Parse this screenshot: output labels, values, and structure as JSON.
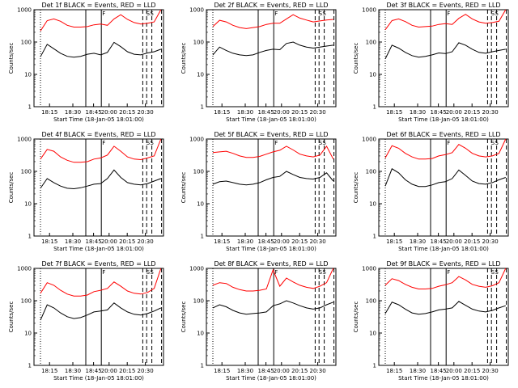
{
  "chart_data": [
    {
      "type": "line",
      "title": "Det 1f BLACK = Events, RED = LLD",
      "xlabel": "Start Time (18-Jan-05 18:01:00)",
      "ylabel": "Counts/sec",
      "x_ticks": [
        "18:15",
        "18:30",
        "18:45",
        "20:00",
        "20:15",
        "20:30"
      ],
      "y_ticks": [
        "1",
        "10",
        "100",
        "1000"
      ],
      "ylim": [
        1,
        1000
      ],
      "yscale": "log",
      "series": [
        {
          "color": "#000000",
          "values": [
            35,
            85,
            62,
            45,
            36,
            34,
            36,
            42,
            45,
            40,
            48,
            98,
            72,
            50,
            42,
            40,
            46,
            50,
            60
          ]
        },
        {
          "color": "#ff0000",
          "values": [
            220,
            460,
            520,
            440,
            330,
            290,
            290,
            300,
            340,
            360,
            330,
            520,
            700,
            500,
            400,
            360,
            380,
            420,
            1000
          ]
        }
      ],
      "markers": [
        "F",
        "S",
        "S"
      ]
    },
    {
      "type": "line",
      "title": "Det 2f BLACK = Events, RED = LLD",
      "xlabel": "Start Time (18-Jan-05 18:01:00)",
      "ylabel": "Counts/sec",
      "x_ticks": [
        "18:15",
        "18:30",
        "18:45",
        "20:00",
        "20:15",
        "20:30"
      ],
      "y_ticks": [
        "1",
        "10",
        "100",
        "1000"
      ],
      "ylim": [
        1,
        1000
      ],
      "yscale": "log",
      "series": [
        {
          "color": "#000000",
          "values": [
            40,
            70,
            55,
            45,
            40,
            38,
            40,
            48,
            55,
            60,
            58,
            90,
            100,
            80,
            70,
            65,
            70,
            75,
            80
          ]
        },
        {
          "color": "#ff0000",
          "values": [
            300,
            470,
            420,
            330,
            280,
            260,
            280,
            300,
            350,
            380,
            380,
            520,
            700,
            550,
            480,
            420,
            450,
            480,
            500
          ]
        }
      ],
      "markers": [
        "F",
        "S",
        "S"
      ]
    },
    {
      "type": "line",
      "title": "Det 3f BLACK = Events, RED = LLD",
      "xlabel": "Start Time (18-Jan-05 18:01:00)",
      "ylabel": "Counts/sec",
      "x_ticks": [
        "18:15",
        "18:30",
        "18:45",
        "20:00",
        "20:15",
        "20:30"
      ],
      "y_ticks": [
        "1",
        "10",
        "100",
        "1000"
      ],
      "ylim": [
        1,
        1000
      ],
      "yscale": "log",
      "series": [
        {
          "color": "#000000",
          "values": [
            30,
            80,
            65,
            48,
            38,
            34,
            36,
            40,
            46,
            44,
            50,
            95,
            80,
            60,
            48,
            45,
            50,
            55,
            60
          ]
        },
        {
          "color": "#ff0000",
          "values": [
            240,
            460,
            520,
            430,
            330,
            290,
            300,
            310,
            350,
            370,
            350,
            540,
            720,
            520,
            420,
            380,
            400,
            440,
            1000
          ]
        }
      ],
      "markers": [
        "F",
        "S",
        "S"
      ]
    },
    {
      "type": "line",
      "title": "Det 4f BLACK = Events, RED = LLD",
      "xlabel": "Start Time (18-Jan-05 18:01:00)",
      "ylabel": "Counts/sec",
      "x_ticks": [
        "18:15",
        "18:30",
        "18:45",
        "20:00",
        "20:15",
        "20:30"
      ],
      "y_ticks": [
        "1",
        "10",
        "100",
        "1000"
      ],
      "ylim": [
        1,
        1000
      ],
      "yscale": "log",
      "series": [
        {
          "color": "#000000",
          "values": [
            30,
            60,
            45,
            35,
            30,
            29,
            31,
            35,
            40,
            42,
            60,
            110,
            65,
            45,
            40,
            38,
            42,
            50,
            60
          ]
        },
        {
          "color": "#ff0000",
          "values": [
            240,
            480,
            420,
            280,
            220,
            190,
            190,
            200,
            240,
            260,
            320,
            600,
            420,
            280,
            240,
            230,
            260,
            300,
            1000
          ]
        }
      ],
      "markers": [
        "F",
        "S",
        "S"
      ]
    },
    {
      "type": "line",
      "title": "Det 5f BLACK = Events, RED = LLD",
      "xlabel": "Start Time (18-Jan-05 18:01:00)",
      "ylabel": "Counts/sec",
      "x_ticks": [
        "18:15",
        "18:30",
        "18:45",
        "20:00",
        "20:15",
        "20:30"
      ],
      "y_ticks": [
        "1",
        "10",
        "100",
        "1000"
      ],
      "ylim": [
        1,
        1000
      ],
      "yscale": "log",
      "series": [
        {
          "color": "#000000",
          "values": [
            40,
            48,
            50,
            45,
            40,
            38,
            40,
            45,
            55,
            65,
            70,
            100,
            80,
            65,
            60,
            58,
            65,
            90,
            50
          ]
        },
        {
          "color": "#ff0000",
          "values": [
            380,
            400,
            420,
            360,
            300,
            270,
            270,
            290,
            340,
            400,
            450,
            600,
            460,
            340,
            300,
            280,
            320,
            600,
            240
          ]
        }
      ],
      "markers": [
        "F",
        "S",
        "S"
      ]
    },
    {
      "type": "line",
      "title": "Det 6f BLACK = Events, RED = LLD",
      "xlabel": "Start Time (18-Jan-05 18:01:00)",
      "ylabel": "Counts/sec",
      "x_ticks": [
        "18:15",
        "18:30",
        "18:45",
        "20:00",
        "20:15",
        "20:30"
      ],
      "y_ticks": [
        "1",
        "10",
        "100",
        "1000"
      ],
      "ylim": [
        1,
        1000
      ],
      "yscale": "log",
      "series": [
        {
          "color": "#000000",
          "values": [
            35,
            120,
            90,
            55,
            40,
            34,
            34,
            38,
            45,
            48,
            60,
            110,
            75,
            50,
            42,
            40,
            45,
            55,
            65
          ]
        },
        {
          "color": "#ff0000",
          "values": [
            260,
            620,
            520,
            360,
            280,
            240,
            240,
            250,
            300,
            330,
            380,
            680,
            520,
            360,
            300,
            280,
            300,
            360,
            1000
          ]
        }
      ],
      "markers": [
        "F",
        "S",
        "S"
      ]
    },
    {
      "type": "line",
      "title": "Det 7f BLACK = Events, RED = LLD",
      "xlabel": "Start Time (18-Jan-05 18:01:00)",
      "ylabel": "Counts/sec",
      "x_ticks": [
        "18:15",
        "18:30",
        "18:45",
        "20:00",
        "20:15",
        "20:30"
      ],
      "y_ticks": [
        "1",
        "10",
        "100",
        "1000"
      ],
      "ylim": [
        1,
        1000
      ],
      "yscale": "log",
      "series": [
        {
          "color": "#000000",
          "values": [
            25,
            75,
            60,
            42,
            32,
            28,
            30,
            36,
            45,
            48,
            52,
            85,
            60,
            45,
            38,
            36,
            40,
            48,
            60
          ]
        },
        {
          "color": "#ff0000",
          "values": [
            170,
            360,
            300,
            210,
            160,
            140,
            140,
            150,
            190,
            210,
            240,
            380,
            280,
            200,
            170,
            160,
            180,
            240,
            1000
          ]
        }
      ],
      "markers": [
        "F",
        "S",
        "S"
      ]
    },
    {
      "type": "line",
      "title": "Det 8f BLACK = Events, RED = LLD",
      "xlabel": "Start Time (18-Jan-05 18:01:00)",
      "ylabel": "Counts/sec",
      "x_ticks": [
        "18:15",
        "18:30",
        "18:45",
        "20:00",
        "20:15",
        "20:30"
      ],
      "y_ticks": [
        "1",
        "10",
        "100",
        "1000"
      ],
      "ylim": [
        1,
        1000
      ],
      "yscale": "log",
      "series": [
        {
          "color": "#000000",
          "values": [
            60,
            75,
            65,
            50,
            42,
            38,
            40,
            42,
            45,
            70,
            80,
            100,
            85,
            70,
            60,
            55,
            60,
            75,
            90
          ]
        },
        {
          "color": "#ff0000",
          "values": [
            300,
            360,
            340,
            260,
            220,
            200,
            200,
            210,
            230,
            900,
            280,
            500,
            380,
            300,
            260,
            240,
            280,
            360,
            1000
          ]
        }
      ],
      "markers": [
        "F",
        "S",
        "S"
      ]
    },
    {
      "type": "line",
      "title": "Det 9f BLACK = Events, RED = LLD",
      "xlabel": "Start Time (18-Jan-05 18:01:00)",
      "ylabel": "Counts/sec",
      "x_ticks": [
        "18:15",
        "18:30",
        "18:45",
        "20:00",
        "20:15",
        "20:30"
      ],
      "y_ticks": [
        "1",
        "10",
        "100",
        "1000"
      ],
      "ylim": [
        1,
        1000
      ],
      "yscale": "log",
      "series": [
        {
          "color": "#000000",
          "values": [
            40,
            90,
            75,
            55,
            42,
            38,
            40,
            45,
            52,
            55,
            60,
            95,
            72,
            55,
            48,
            45,
            50,
            60,
            70
          ]
        },
        {
          "color": "#ff0000",
          "values": [
            300,
            480,
            420,
            320,
            260,
            230,
            230,
            240,
            280,
            310,
            360,
            560,
            440,
            320,
            280,
            260,
            290,
            360,
            1000
          ]
        }
      ],
      "markers": [
        "F",
        "S",
        "S"
      ]
    }
  ]
}
